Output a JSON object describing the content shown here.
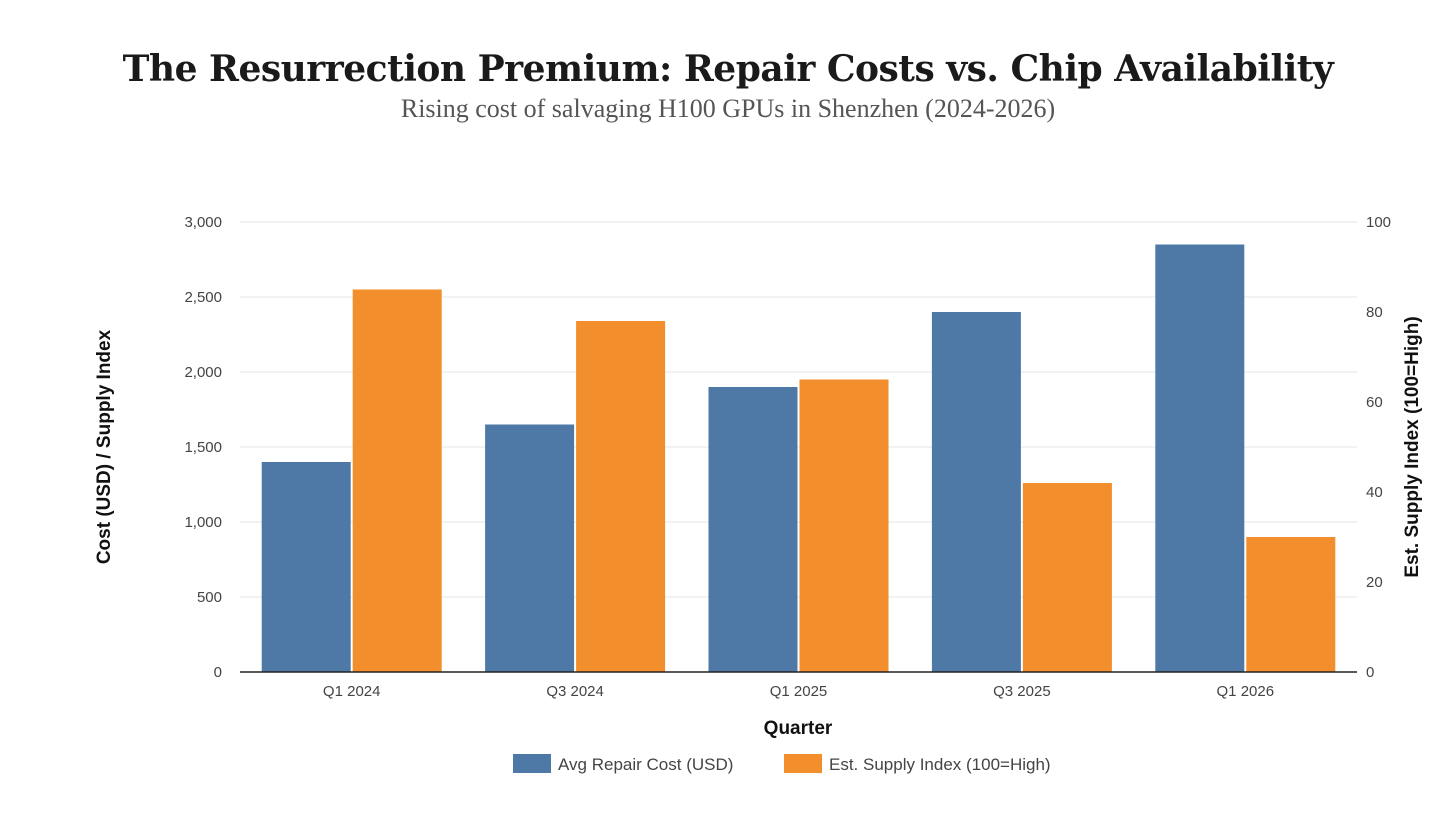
{
  "chart_data": {
    "type": "bar",
    "title": "The Resurrection Premium: Repair Costs vs. Chip Availability",
    "subtitle": "Rising cost of salvaging H100 GPUs in Shenzhen (2024-2026)",
    "xlabel": "Quarter",
    "ylabel_left": "Cost (USD) / Supply Index",
    "ylabel_right": "Est. Supply Index (100=High)",
    "categories": [
      "Q1 2024",
      "Q3 2024",
      "Q1 2025",
      "Q3 2025",
      "Q1 2026"
    ],
    "series": [
      {
        "name": "Avg Repair Cost (USD)",
        "axis": "left",
        "color": "#4e79a7",
        "values": [
          1400,
          1650,
          1900,
          2400,
          2850
        ]
      },
      {
        "name": "Est. Supply Index (100=High)",
        "axis": "right",
        "color": "#f28e2b",
        "values": [
          85,
          78,
          65,
          42,
          30
        ]
      }
    ],
    "ylim_left": [
      0,
      3000
    ],
    "ylim_right": [
      0,
      100
    ],
    "yticks_left": [
      "0",
      "500",
      "1,000",
      "1,500",
      "2,000",
      "2,500",
      "3,000"
    ],
    "yticks_left_values": [
      0,
      500,
      1000,
      1500,
      2000,
      2500,
      3000
    ],
    "yticks_right": [
      "0",
      "20",
      "40",
      "60",
      "80",
      "100"
    ],
    "yticks_right_values": [
      0,
      20,
      40,
      60,
      80,
      100
    ],
    "grid": true,
    "legend_position": "bottom"
  }
}
